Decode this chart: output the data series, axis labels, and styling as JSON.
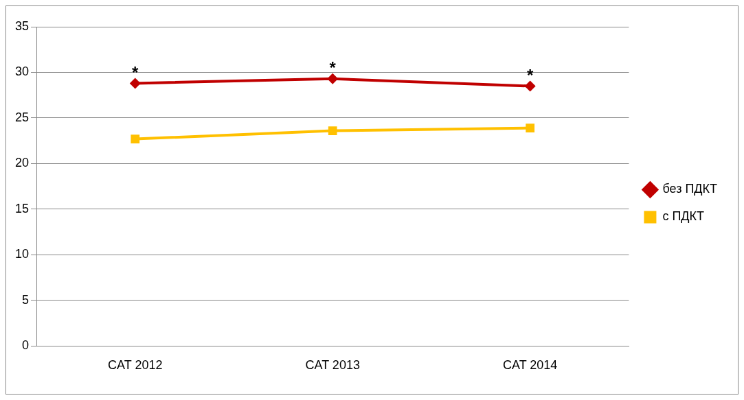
{
  "chart_data": {
    "type": "line",
    "categories": [
      "CAT 2012",
      "CAT 2013",
      "CAT 2014"
    ],
    "series": [
      {
        "name": "без ПДКТ",
        "color": "#c00000",
        "values": [
          28.8,
          29.3,
          28.5
        ],
        "marker": "diamond"
      },
      {
        "name": "с ПДКТ",
        "color": "#ffc000",
        "values": [
          22.7,
          23.6,
          23.9
        ],
        "marker": "square"
      }
    ],
    "ylim": [
      0,
      35
    ],
    "yticks": [
      0,
      5,
      10,
      15,
      20,
      25,
      30,
      35
    ],
    "grid": "y",
    "legend": "right",
    "line_style": "solid",
    "annotations": [
      {
        "text": "*",
        "x": "CAT 2012",
        "y": 28.8
      },
      {
        "text": "*",
        "x": "CAT 2013",
        "y": 29.3
      },
      {
        "text": "*",
        "x": "CAT 2014",
        "y": 28.5
      }
    ]
  }
}
